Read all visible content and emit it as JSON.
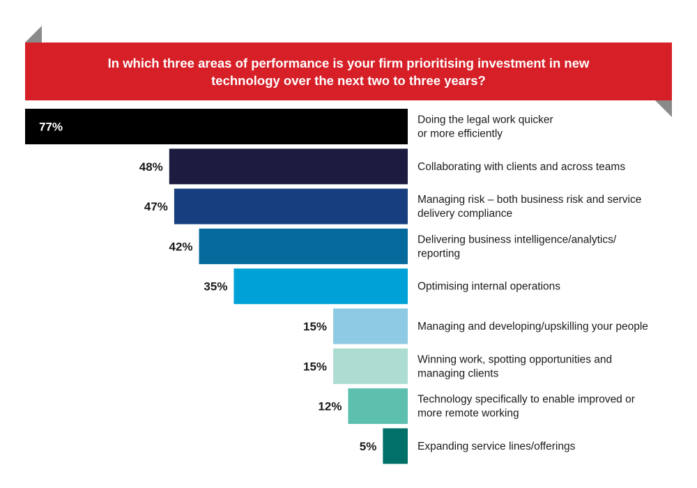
{
  "chart_data": {
    "type": "bar",
    "orientation": "horizontal",
    "title": "In which three areas of performance is your firm prioritising investment in new technology over the next two to three years?",
    "unit": "%",
    "categories": [
      [
        "Doing the legal work quicker",
        "or more efficiently"
      ],
      [
        "Collaborating with clients and across teams"
      ],
      [
        "Managing risk – both business risk and service",
        "delivery compliance"
      ],
      [
        "Delivering business intelligence/analytics/",
        "reporting"
      ],
      [
        "Optimising internal operations"
      ],
      [
        "Managing and developing/upskilling your people"
      ],
      [
        "Winning work, spotting opportunities and",
        "managing clients"
      ],
      [
        "Technology specifically to enable improved or",
        "more remote working"
      ],
      [
        "Expanding service lines/offerings"
      ]
    ],
    "values": [
      77,
      48,
      47,
      42,
      35,
      15,
      15,
      12,
      5
    ],
    "value_labels": [
      "77%",
      "48%",
      "47%",
      "42%",
      "35%",
      "15%",
      "15%",
      "12%",
      "5%"
    ],
    "colors": [
      "#000000",
      "#1b1c40",
      "#173f7f",
      "#076a9c",
      "#00a1d6",
      "#8ecae3",
      "#acdcd2",
      "#5dbfae",
      "#017069"
    ],
    "xlim": [
      0,
      77
    ],
    "grid": false,
    "legend": "none"
  }
}
